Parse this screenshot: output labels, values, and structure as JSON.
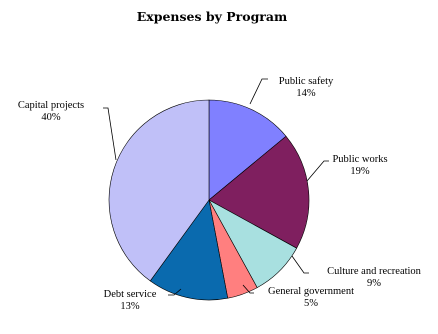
{
  "chart_data": {
    "type": "pie",
    "title": "Expenses by Program",
    "slices": [
      {
        "label": "Public safety",
        "pct_label": "14%",
        "value": 14,
        "color": "#8080ff"
      },
      {
        "label": "Public works",
        "pct_label": "19%",
        "value": 19,
        "color": "#7f1f5f"
      },
      {
        "label": "Culture and recreation",
        "pct_label": "9%",
        "value": 9,
        "color": "#a8e0e0"
      },
      {
        "label": "General government",
        "pct_label": "5%",
        "value": 5,
        "color": "#ff7f7f"
      },
      {
        "label": "Debt service",
        "pct_label": "13%",
        "value": 13,
        "color": "#0a6aae"
      },
      {
        "label": "Capital projects",
        "pct_label": "40%",
        "value": 40,
        "color": "#c0c0f8"
      }
    ],
    "legend": "none (labels placed next to slices)"
  }
}
